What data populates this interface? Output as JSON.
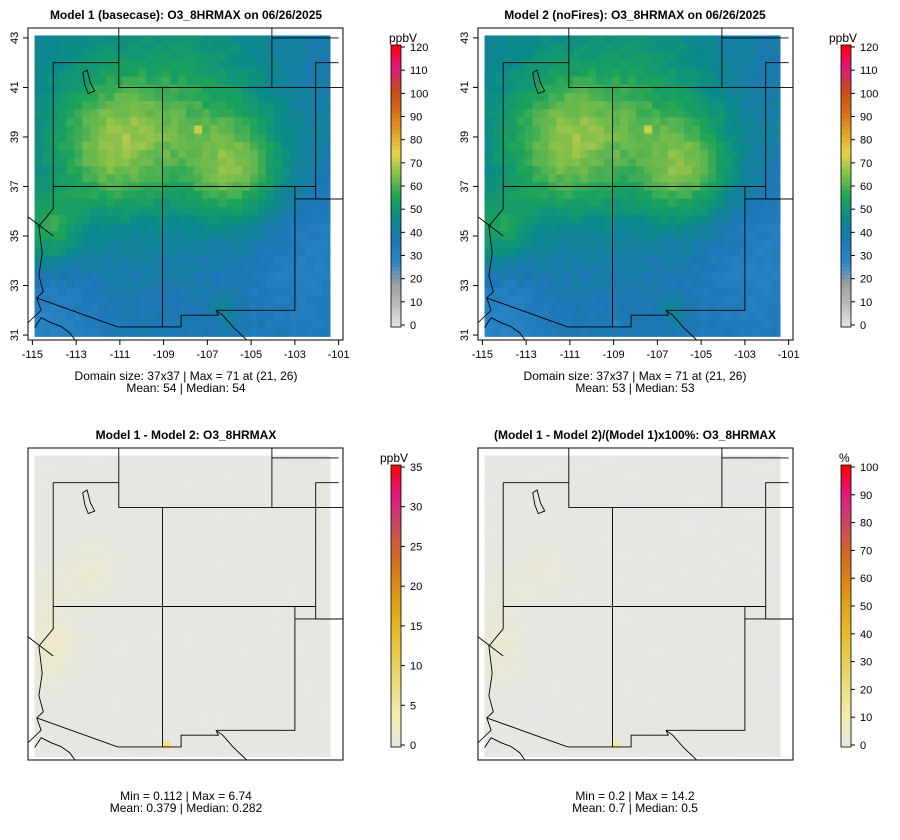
{
  "colors": {
    "scale_12": [
      "#e6e6e6",
      "#bdbdbd",
      "#9e9e9e",
      "#2a86c8",
      "#1e77b6",
      "#0b8a8a",
      "#1ca35a",
      "#7fbf4a",
      "#e6d44a",
      "#e1a024",
      "#d86a16",
      "#c8471f",
      "#e0187e",
      "#ff0000"
    ],
    "scale_diff": [
      "#e6e6e6",
      "#f1eeb0",
      "#ede089",
      "#e9cf5a",
      "#e6bd2d",
      "#e0a316",
      "#d98318",
      "#d0632a",
      "#cc4466",
      "#e0187e",
      "#ff0000"
    ]
  },
  "chart_data": [
    {
      "type": "heatmap",
      "title": "Model 1 (basecase): O3_8HRMAX on 06/26/2025",
      "xticks": [
        "-115",
        "-113",
        "-111",
        "-109",
        "-107",
        "-105",
        "-103",
        "-101"
      ],
      "yticks": [
        "31",
        "33",
        "35",
        "37",
        "39",
        "41",
        "43"
      ],
      "xlim": [
        -115.2,
        -100.8
      ],
      "ylim": [
        30.8,
        43.4
      ],
      "legend_unit": "ppbV",
      "legend_ticks": [
        "0",
        "10",
        "20",
        "30",
        "40",
        "50",
        "60",
        "70",
        "80",
        "90",
        "100",
        "110",
        "120"
      ],
      "legend_range": [
        0,
        120
      ],
      "grid_size": "37x37",
      "max_value": 71,
      "max_location": "(21, 26)",
      "mean": 54,
      "median": 54,
      "footer_line1": "Domain size: 37x37 | Max = 71 at (21, 26)",
      "footer_line2": "Mean: 54 |  Median: 54"
    },
    {
      "type": "heatmap",
      "title": "Model 2 (noFires): O3_8HRMAX on 06/26/2025",
      "xticks": [
        "-115",
        "-113",
        "-111",
        "-109",
        "-107",
        "-105",
        "-103",
        "-101"
      ],
      "yticks": [
        "31",
        "33",
        "35",
        "37",
        "39",
        "41",
        "43"
      ],
      "xlim": [
        -115.2,
        -100.8
      ],
      "ylim": [
        30.8,
        43.4
      ],
      "legend_unit": "ppbV",
      "legend_ticks": [
        "0",
        "10",
        "20",
        "30",
        "40",
        "50",
        "60",
        "70",
        "80",
        "90",
        "100",
        "110",
        "120"
      ],
      "legend_range": [
        0,
        120
      ],
      "grid_size": "37x37",
      "max_value": 71,
      "max_location": "(21, 26)",
      "mean": 53,
      "median": 53,
      "footer_line1": "Domain size: 37x37 | Max = 71 at (21, 26)",
      "footer_line2": "Mean: 53 |  Median: 53"
    },
    {
      "type": "heatmap",
      "title": "Model 1 - Model 2: O3_8HRMAX",
      "legend_unit": "ppbV",
      "legend_ticks": [
        "0",
        "5",
        "10",
        "15",
        "20",
        "25",
        "30",
        "35"
      ],
      "legend_range": [
        0,
        35
      ],
      "min_value": 0.112,
      "max_value": 6.74,
      "mean": 0.379,
      "median": 0.282,
      "footer_line1": "Min = 0.112 | Max = 6.74",
      "footer_line2": "Mean: 0.379 |  Median: 0.282"
    },
    {
      "type": "heatmap",
      "title": "(Model 1 - Model 2)/(Model 1)x100%: O3_8HRMAX",
      "legend_unit": "%",
      "legend_ticks": [
        "0",
        "10",
        "20",
        "30",
        "40",
        "50",
        "60",
        "70",
        "80",
        "90",
        "100"
      ],
      "legend_range": [
        0,
        100
      ],
      "min_value": 0.2,
      "max_value": 14.2,
      "mean": 0.7,
      "median": 0.5,
      "footer_line1": "Min = 0.2 | Max = 14.2",
      "footer_line2": "Mean: 0.7 |  Median: 0.5"
    }
  ]
}
